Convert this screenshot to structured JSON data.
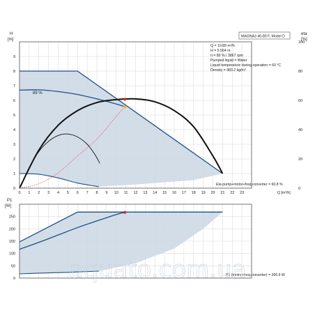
{
  "top_panel": {
    "y_title": "H",
    "y_unit": "[m]",
    "right_title": "eta",
    "right_unit": "[%]",
    "info_box_title": "MAGNA3 40-80 F, Model D",
    "info_lines": [
      "Q = 10.89 m³/h",
      "H = 5.564 m",
      "n = 89 % / 3867 rpm",
      "Pumped liquid = Water",
      "Liquid temperature during operation = 60 °C",
      "Density = 983.2 kg/m³"
    ],
    "curve_label": "89 %",
    "eta_label": "Eta pump+motor+freq.converter = 60.8 %",
    "x_axis_label": "Q [m³/h]"
  },
  "bottom_panel": {
    "y_title": "P1",
    "y_unit": "[W]",
    "p1_label": "P1 (motor+freq.converter) = 266.9 W"
  },
  "watermark": "aquato.com.ua",
  "colors": {
    "area_fill": "#cdd9e6",
    "curve_blue": "#1e4f86",
    "curve_black": "#111111",
    "system_red": "#e06b6b",
    "grid": "#d6d6d6",
    "op_point_yellow": "#f2b41e",
    "op_point_red": "#e02020"
  },
  "chart_data": [
    {
      "type": "line",
      "panel": "head_and_efficiency",
      "xlim": [
        0,
        24
      ],
      "x_ticks": [
        0,
        1,
        2,
        3,
        4,
        5,
        6,
        7,
        8,
        9,
        10,
        11,
        12,
        13,
        14,
        15,
        16,
        17,
        18,
        19,
        20,
        21,
        22,
        23
      ],
      "ylim": [
        0,
        10
      ],
      "y_ticks": [
        0,
        1,
        2,
        3,
        4,
        5,
        6,
        7,
        8,
        9
      ],
      "y2lim": [
        0,
        100
      ],
      "y2_ticks": [
        0,
        20,
        40,
        60,
        80,
        100
      ],
      "grid": true,
      "operating_point": {
        "q": 10.89,
        "h": 5.564,
        "eta": 60.8
      },
      "series": [
        {
          "name": "89 %",
          "axis": "H",
          "x": [
            0,
            2,
            4,
            6,
            8,
            10,
            10.89
          ],
          "y": [
            6.7,
            6.72,
            6.6,
            6.4,
            6.1,
            5.75,
            5.564
          ]
        },
        {
          "axis": "H",
          "x": [
            0,
            6,
            21
          ],
          "y": [
            8.0,
            8.0,
            1.0
          ]
        },
        {
          "axis": "H",
          "x": [
            0,
            2,
            4,
            6,
            8.2
          ],
          "y": [
            1.0,
            0.95,
            0.7,
            0.35,
            0.1
          ]
        },
        {
          "axis": "H",
          "x": [
            0,
            2,
            4,
            6,
            8,
            10,
            10.89
          ],
          "y": [
            0,
            0.3,
            1.05,
            2.2,
            3.35,
            4.9,
            5.564
          ]
        },
        {
          "axis": "eta",
          "x": [
            0,
            2,
            4,
            6,
            8,
            10,
            12,
            14,
            16,
            18,
            20,
            21
          ],
          "y": [
            0,
            26,
            43,
            53,
            58.5,
            60.5,
            61,
            59,
            53,
            42,
            22,
            10
          ]
        },
        {
          "axis": "eta",
          "x": [
            0,
            1,
            2,
            3,
            4,
            5,
            6,
            7,
            7.8,
            8.3
          ],
          "y": [
            0,
            14,
            25,
            32,
            36,
            37,
            35,
            30,
            23,
            17
          ]
        }
      ]
    },
    {
      "type": "line",
      "panel": "power",
      "xlim": [
        0,
        24
      ],
      "ylim": [
        0,
        300
      ],
      "y_ticks": [
        0,
        50,
        100,
        150,
        200,
        250
      ],
      "grid": true,
      "operating_point": {
        "q": 10.89,
        "p1": 266.9
      },
      "series": [
        {
          "name": "P1 (motor+freq.converter)",
          "x": [
            0,
            2,
            4,
            6,
            8,
            10,
            10.89
          ],
          "y": [
            117,
            145,
            175,
            205,
            232,
            258,
            266.9
          ]
        },
        {
          "x": [
            0,
            6,
            21
          ],
          "y": [
            147,
            268,
            268
          ]
        },
        {
          "x": [
            0,
            2,
            4,
            6,
            8.2
          ],
          "y": [
            17,
            20,
            22,
            25,
            28
          ]
        }
      ]
    }
  ]
}
